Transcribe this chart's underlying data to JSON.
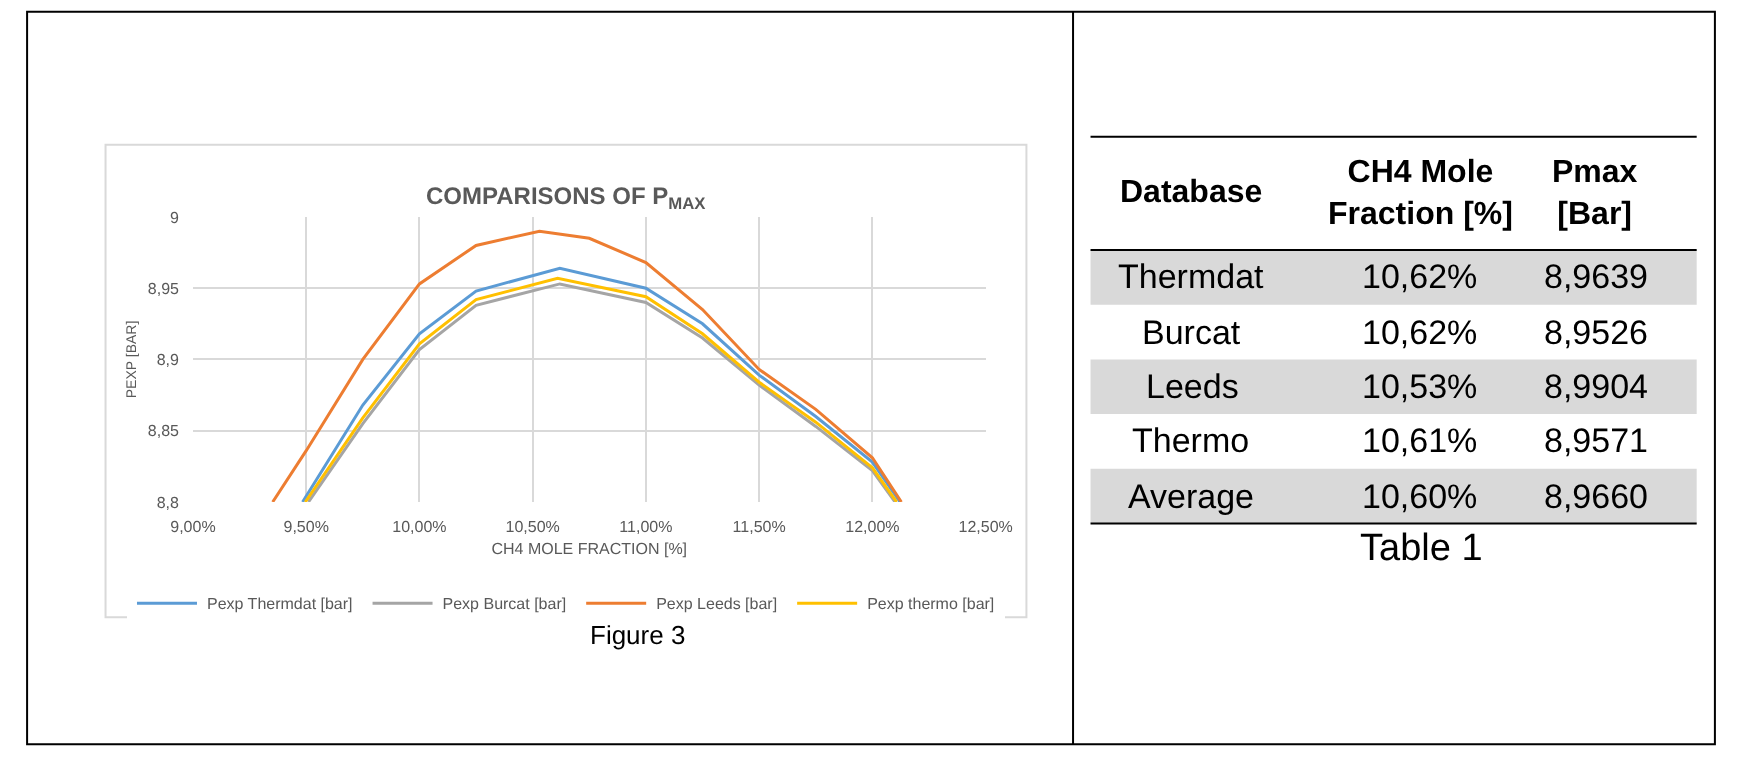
{
  "chart_data": [
    {
      "type": "line",
      "title": "COMPARISONS OF P$_{MAX}$",
      "xlabel": "CH4 MOLE FRACTION [%]",
      "ylabel": "PEXP [BAR]",
      "xlim": [
        9.0,
        12.5
      ],
      "ylim": [
        8.8,
        9.0
      ],
      "xticks": [
        {
          "value": 9.0,
          "label": "9,00%"
        },
        {
          "value": 9.5,
          "label": "9,50%"
        },
        {
          "value": 10.0,
          "label": "10,00%"
        },
        {
          "value": 10.5,
          "label": "10,50%"
        },
        {
          "value": 11.0,
          "label": "11,00%"
        },
        {
          "value": 11.5,
          "label": "11,50%"
        },
        {
          "value": 12.0,
          "label": "12,00%"
        },
        {
          "value": 12.5,
          "label": "12,50%"
        }
      ],
      "yticks": [
        {
          "value": 8.8,
          "label": "8,8"
        },
        {
          "value": 8.85,
          "label": "8,85"
        },
        {
          "value": 8.9,
          "label": "8,9"
        },
        {
          "value": 8.95,
          "label": "8,95"
        },
        9
      ],
      "grid": true,
      "legend": "bottom",
      "marker": "none",
      "line_style": "solid",
      "series": [
        {
          "name": "Pexp Thermdat [bar]",
          "color": "#5b9bd5",
          "x": [
            9.484,
            9.75,
            10.0,
            10.25,
            10.62,
            11.0,
            11.25,
            11.5,
            11.75,
            12.0,
            12.122
          ],
          "values": [
            8.8,
            8.868,
            8.918,
            8.948,
            8.964,
            8.95,
            8.925,
            8.889,
            8.86,
            8.828,
            8.8
          ]
        },
        {
          "name": "Pexp Burcat [bar]",
          "color": "#a5a5a5",
          "x": [
            9.51,
            9.75,
            10.0,
            10.25,
            10.62,
            11.0,
            11.25,
            11.5,
            11.75,
            12.0,
            12.1
          ],
          "values": [
            8.8,
            8.855,
            8.907,
            8.938,
            8.953,
            8.94,
            8.915,
            8.882,
            8.853,
            8.822,
            8.8
          ]
        },
        {
          "name": "Pexp Leeds [bar]",
          "color": "#ed7d31",
          "x": [
            9.352,
            9.5,
            9.75,
            10.0,
            10.25,
            10.53,
            10.75,
            11.0,
            11.25,
            11.5,
            11.75,
            12.0,
            12.128
          ],
          "values": [
            8.8,
            8.836,
            8.9,
            8.953,
            8.98,
            8.99,
            8.985,
            8.968,
            8.935,
            8.893,
            8.865,
            8.831,
            8.8
          ]
        },
        {
          "name": "Pexp thermo [bar]",
          "color": "#ffc000",
          "x": [
            9.496,
            9.75,
            10.0,
            10.25,
            10.61,
            11.0,
            11.25,
            11.5,
            11.75,
            12.0,
            12.107
          ],
          "values": [
            8.8,
            8.859,
            8.911,
            8.942,
            8.957,
            8.944,
            8.918,
            8.884,
            8.856,
            8.824,
            8.8
          ]
        }
      ],
      "annotations": [
        "Figure 3"
      ]
    },
    {
      "type": "other",
      "title": "Table 1",
      "annotations": [
        "Database",
        "CH4 Mole\nFraction [%]",
        "Pmax\n[Bar]",
        "Thermdat",
        "10,62%",
        "8,9639",
        "Burcat",
        "10,62%",
        "8,9526",
        "Leeds",
        "10,53%",
        "8,9904",
        "Thermo",
        "10,61%",
        "8,9571",
        "Average",
        "10,60%",
        "8,9660"
      ]
    }
  ]
}
